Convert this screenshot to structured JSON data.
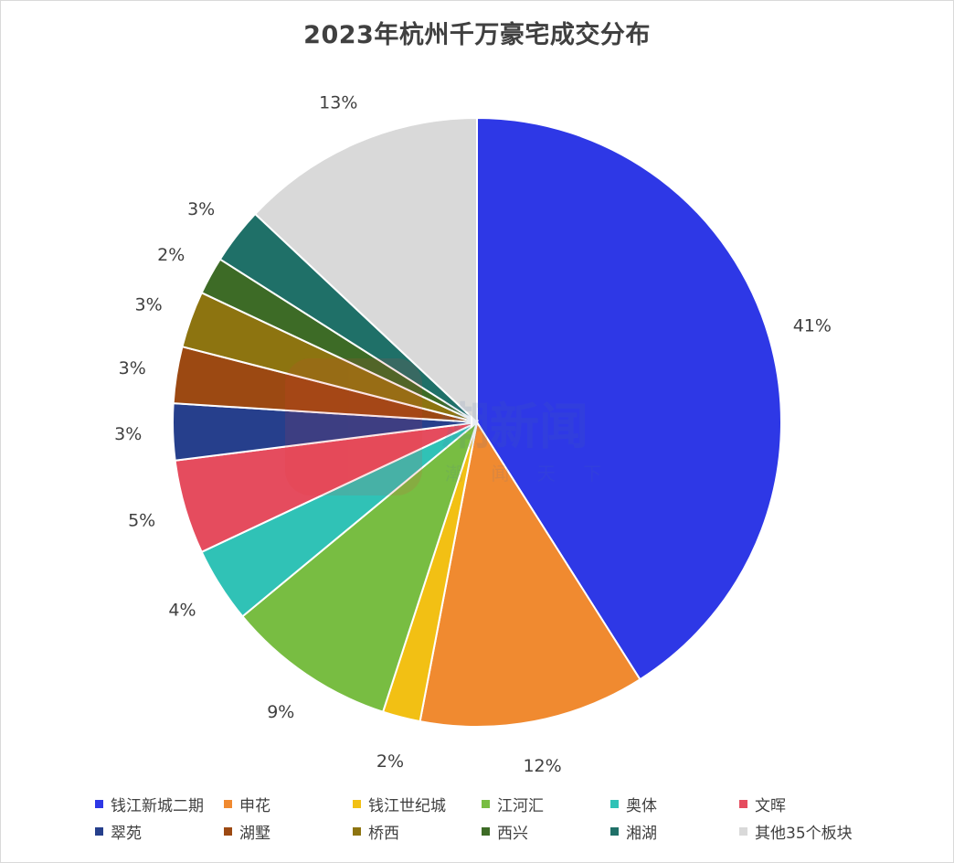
{
  "chart_data": {
    "type": "pie",
    "title": "2023年杭州千万豪宅成交分布",
    "slices": [
      {
        "label": "钱江新城二期",
        "value": 41,
        "display": "41%",
        "color": "#2e38e6"
      },
      {
        "label": "申花",
        "value": 12,
        "display": "12%",
        "color": "#f08a30"
      },
      {
        "label": "钱江世纪城",
        "value": 2,
        "display": "2%",
        "color": "#f2c014"
      },
      {
        "label": "江河汇",
        "value": 9,
        "display": "9%",
        "color": "#78bd42"
      },
      {
        "label": "奥体",
        "value": 4,
        "display": "4%",
        "color": "#30c2b6"
      },
      {
        "label": "文晖",
        "value": 5,
        "display": "5%",
        "color": "#e54c5e"
      },
      {
        "label": "翠苑",
        "value": 3,
        "display": "3%",
        "color": "#263f8c"
      },
      {
        "label": "湖墅",
        "value": 3,
        "display": "3%",
        "color": "#9c4912"
      },
      {
        "label": "桥西",
        "value": 3,
        "display": "3%",
        "color": "#8d7410"
      },
      {
        "label": "西兴",
        "value": 2,
        "display": "2%",
        "color": "#3d6b26"
      },
      {
        "label": "湘湖",
        "value": 3,
        "display": "3%",
        "color": "#1f7068"
      },
      {
        "label": "其他35个板块",
        "value": 13,
        "display": "13%",
        "color": "#d9d9d9"
      }
    ],
    "legend_position": "bottom"
  },
  "watermark": {
    "brand": "潮新闻",
    "latin": "NEWS",
    "slogan": "潮 闻 天 下"
  }
}
